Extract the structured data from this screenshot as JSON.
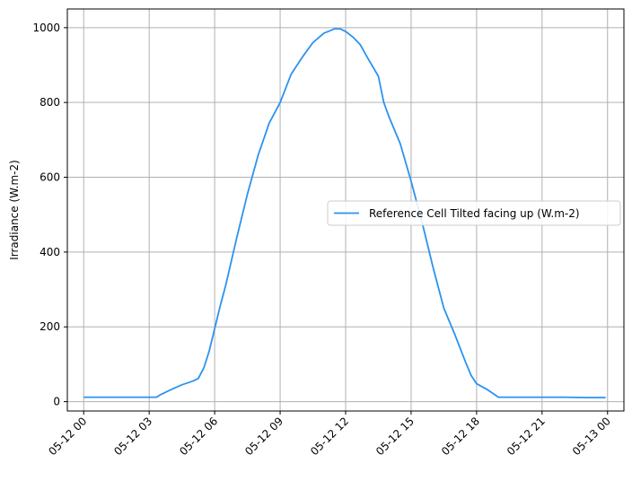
{
  "chart_data": {
    "type": "line",
    "title": "",
    "xlabel": "",
    "ylabel": "Irradiance (W.m-2)",
    "xlim": [
      "2023-05-11 23:15",
      "2023-05-13 00:45"
    ],
    "ylim": [
      -25,
      1050
    ],
    "grid": true,
    "legend_position": "center-right",
    "x_ticks": [
      "2023-05-12 00:00",
      "2023-05-12 03:00",
      "2023-05-12 06:00",
      "2023-05-12 09:00",
      "2023-05-12 12:00",
      "2023-05-12 15:00",
      "2023-05-12 18:00",
      "2023-05-12 21:00",
      "2023-05-13 00:00"
    ],
    "x_tick_labels": [
      "05-12 00",
      "05-12 03",
      "05-12 06",
      "05-12 09",
      "05-12 12",
      "05-12 15",
      "05-12 18",
      "05-12 21",
      "05-13 00"
    ],
    "y_ticks": [
      0,
      200,
      400,
      600,
      800,
      1000
    ],
    "y_tick_labels": [
      "0",
      "200",
      "400",
      "600",
      "800",
      "1000"
    ],
    "series": [
      {
        "name": "Reference Cell Tilted facing up (W.m-2)",
        "color": "#2a93f0",
        "x": [
          "2023-05-12 00:00",
          "2023-05-12 01:00",
          "2023-05-12 02:00",
          "2023-05-12 03:00",
          "2023-05-12 03:20",
          "2023-05-12 03:30",
          "2023-05-12 04:00",
          "2023-05-12 04:30",
          "2023-05-12 05:00",
          "2023-05-12 05:15",
          "2023-05-12 05:30",
          "2023-05-12 05:45",
          "2023-05-12 06:00",
          "2023-05-12 06:15",
          "2023-05-12 06:30",
          "2023-05-12 07:00",
          "2023-05-12 07:30",
          "2023-05-12 08:00",
          "2023-05-12 08:30",
          "2023-05-12 09:00",
          "2023-05-12 09:30",
          "2023-05-12 10:00",
          "2023-05-12 10:30",
          "2023-05-12 11:00",
          "2023-05-12 11:30",
          "2023-05-12 11:45",
          "2023-05-12 12:00",
          "2023-05-12 12:20",
          "2023-05-12 12:40",
          "2023-05-12 13:00",
          "2023-05-12 13:30",
          "2023-05-12 13:45",
          "2023-05-12 14:00",
          "2023-05-12 14:30",
          "2023-05-12 15:00",
          "2023-05-12 15:30",
          "2023-05-12 16:00",
          "2023-05-12 16:30",
          "2023-05-12 17:00",
          "2023-05-12 17:30",
          "2023-05-12 17:45",
          "2023-05-12 18:00",
          "2023-05-12 18:15",
          "2023-05-12 18:30",
          "2023-05-12 19:00",
          "2023-05-12 20:00",
          "2023-05-12 21:00",
          "2023-05-12 22:00",
          "2023-05-12 23:00",
          "2023-05-12 23:55"
        ],
        "y": [
          12,
          12,
          12,
          12,
          12,
          18,
          32,
          45,
          55,
          62,
          90,
          135,
          195,
          255,
          310,
          435,
          555,
          660,
          745,
          800,
          875,
          920,
          960,
          985,
          997,
          997,
          990,
          975,
          955,
          920,
          870,
          800,
          760,
          690,
          590,
          480,
          360,
          250,
          180,
          105,
          70,
          48,
          40,
          32,
          12,
          12,
          12,
          12,
          11,
          11
        ]
      }
    ]
  }
}
